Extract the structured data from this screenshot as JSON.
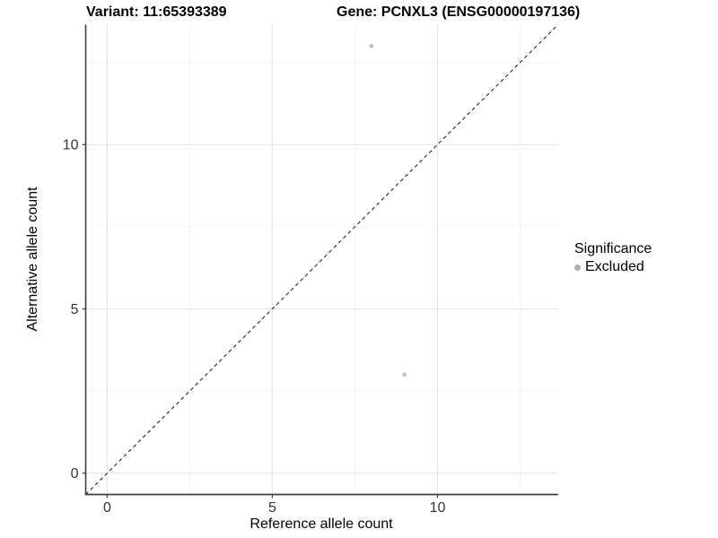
{
  "header": {
    "variant_title": "Variant: 11:65393389",
    "gene_title": "Gene: PCNXL3 (ENSG00000197136)"
  },
  "chart_data": {
    "type": "scatter",
    "title_left": "Variant: 11:65393389",
    "title_right": "Gene: PCNXL3 (ENSG00000197136)",
    "xlabel": "Reference allele count",
    "ylabel": "Alternative allele count",
    "xlim": [
      -0.65,
      13.65
    ],
    "ylim": [
      -0.65,
      13.65
    ],
    "x_ticks": [
      0,
      5,
      10
    ],
    "y_ticks": [
      0,
      5,
      10
    ],
    "x_tick_labels": [
      "0",
      "5",
      "10"
    ],
    "y_tick_labels": [
      "0",
      "5",
      "10"
    ],
    "x_minor_ticks": [
      2.5,
      7.5,
      12.5
    ],
    "y_minor_ticks": [
      2.5,
      7.5,
      12.5
    ],
    "grid": true,
    "reference_line": {
      "type": "identity",
      "style": "dashed",
      "color": "#222222"
    },
    "series": [
      {
        "name": "Excluded",
        "color": "#c4c4c4",
        "points": [
          {
            "x": 8,
            "y": 13
          },
          {
            "x": 9,
            "y": 3
          }
        ]
      }
    ],
    "legend": {
      "position": "right",
      "title": "Significance",
      "entries": [
        {
          "label": "Excluded",
          "color": "#b0b0b0"
        }
      ]
    },
    "colors": {
      "background": "#ffffff",
      "grid_major": "#e4e4e4",
      "grid_minor": "#f2f2f2",
      "axis_line": "#3c3c3c",
      "tick_label": "#333333",
      "point": "#c4c4c4"
    }
  }
}
